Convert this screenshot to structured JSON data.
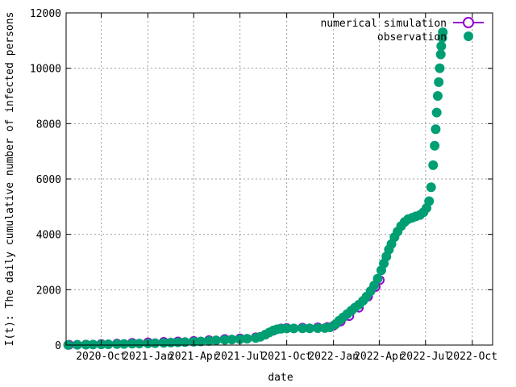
{
  "chart_data": {
    "type": "scatter",
    "xlabel": "date",
    "ylabel": "I(t): The daily cumulative number of infected persons",
    "xlim": [
      "2020-07-24",
      "2022-11-10"
    ],
    "ylim": [
      0,
      12000
    ],
    "x_ticks": [
      "2020-10-01",
      "2021-01-01",
      "2021-04-01",
      "2021-07-01",
      "2021-10-01",
      "2022-01-01",
      "2022-04-01",
      "2022-07-01",
      "2022-10-01"
    ],
    "x_tick_labels": [
      "2020-Oct",
      "2021-Jan",
      "2021-Apr",
      "2021-Jul",
      "2021-Oct",
      "2022-Jan",
      "2022-Apr",
      "2022-Jul",
      "2022-Oct"
    ],
    "y_ticks": [
      0,
      2000,
      4000,
      6000,
      8000,
      10000,
      12000
    ],
    "y_tick_labels": [
      "0",
      "2000",
      "4000",
      "6000",
      "8000",
      "10000",
      "12000"
    ],
    "grid": true,
    "legend_position": "top-right",
    "series": [
      {
        "name": "numerical simulation",
        "style": "line-open-circles",
        "color": "#9400d3",
        "points": [
          [
            "2020-07-30",
            10
          ],
          [
            "2020-09-01",
            20
          ],
          [
            "2020-10-01",
            40
          ],
          [
            "2020-11-01",
            55
          ],
          [
            "2020-12-01",
            80
          ],
          [
            "2021-01-01",
            100
          ],
          [
            "2021-02-01",
            115
          ],
          [
            "2021-03-01",
            130
          ],
          [
            "2021-04-01",
            150
          ],
          [
            "2021-05-01",
            180
          ],
          [
            "2021-06-01",
            220
          ],
          [
            "2021-07-01",
            240
          ],
          [
            "2021-08-01",
            280
          ],
          [
            "2021-08-20",
            380
          ],
          [
            "2021-09-05",
            520
          ],
          [
            "2021-09-20",
            600
          ],
          [
            "2021-10-01",
            620
          ],
          [
            "2021-11-01",
            630
          ],
          [
            "2021-12-01",
            640
          ],
          [
            "2021-12-20",
            650
          ],
          [
            "2022-01-01",
            700
          ],
          [
            "2022-01-15",
            850
          ],
          [
            "2022-02-01",
            1050
          ],
          [
            "2022-02-20",
            1350
          ],
          [
            "2022-03-10",
            1750
          ],
          [
            "2022-03-25",
            2100
          ],
          [
            "2022-04-02",
            2350
          ]
        ]
      },
      {
        "name": "observation",
        "style": "filled-circles",
        "color": "#009e73",
        "points": [
          [
            "2020-07-28",
            5
          ],
          [
            "2020-08-15",
            10
          ],
          [
            "2020-09-01",
            15
          ],
          [
            "2020-09-15",
            20
          ],
          [
            "2020-10-01",
            25
          ],
          [
            "2020-10-15",
            30
          ],
          [
            "2020-11-01",
            35
          ],
          [
            "2020-11-15",
            40
          ],
          [
            "2020-12-01",
            50
          ],
          [
            "2020-12-15",
            55
          ],
          [
            "2021-01-01",
            60
          ],
          [
            "2021-01-15",
            70
          ],
          [
            "2021-02-01",
            80
          ],
          [
            "2021-02-15",
            90
          ],
          [
            "2021-03-01",
            100
          ],
          [
            "2021-03-15",
            110
          ],
          [
            "2021-04-01",
            120
          ],
          [
            "2021-04-15",
            130
          ],
          [
            "2021-05-01",
            150
          ],
          [
            "2021-05-15",
            170
          ],
          [
            "2021-06-01",
            190
          ],
          [
            "2021-06-15",
            200
          ],
          [
            "2021-07-01",
            210
          ],
          [
            "2021-07-15",
            230
          ],
          [
            "2021-08-01",
            260
          ],
          [
            "2021-08-10",
            300
          ],
          [
            "2021-08-20",
            380
          ],
          [
            "2021-08-28",
            460
          ],
          [
            "2021-09-05",
            530
          ],
          [
            "2021-09-12",
            570
          ],
          [
            "2021-09-20",
            590
          ],
          [
            "2021-10-01",
            600
          ],
          [
            "2021-10-15",
            600
          ],
          [
            "2021-11-01",
            605
          ],
          [
            "2021-11-15",
            605
          ],
          [
            "2021-12-01",
            610
          ],
          [
            "2021-12-15",
            615
          ],
          [
            "2021-12-25",
            640
          ],
          [
            "2022-01-05",
            750
          ],
          [
            "2022-01-12",
            880
          ],
          [
            "2022-01-20",
            1000
          ],
          [
            "2022-01-28",
            1120
          ],
          [
            "2022-02-05",
            1240
          ],
          [
            "2022-02-12",
            1350
          ],
          [
            "2022-02-20",
            1460
          ],
          [
            "2022-02-28",
            1600
          ],
          [
            "2022-03-07",
            1750
          ],
          [
            "2022-03-15",
            1950
          ],
          [
            "2022-03-22",
            2150
          ],
          [
            "2022-03-29",
            2400
          ],
          [
            "2022-04-05",
            2700
          ],
          [
            "2022-04-10",
            2950
          ],
          [
            "2022-04-15",
            3200
          ],
          [
            "2022-04-20",
            3450
          ],
          [
            "2022-04-25",
            3650
          ],
          [
            "2022-05-01",
            3900
          ],
          [
            "2022-05-07",
            4100
          ],
          [
            "2022-05-14",
            4300
          ],
          [
            "2022-05-21",
            4450
          ],
          [
            "2022-05-28",
            4550
          ],
          [
            "2022-06-05",
            4600
          ],
          [
            "2022-06-12",
            4650
          ],
          [
            "2022-06-20",
            4700
          ],
          [
            "2022-06-27",
            4800
          ],
          [
            "2022-07-03",
            4950
          ],
          [
            "2022-07-08",
            5200
          ],
          [
            "2022-07-12",
            5700
          ],
          [
            "2022-07-16",
            6500
          ],
          [
            "2022-07-19",
            7200
          ],
          [
            "2022-07-21",
            7800
          ],
          [
            "2022-07-23",
            8400
          ],
          [
            "2022-07-25",
            9000
          ],
          [
            "2022-07-27",
            9500
          ],
          [
            "2022-07-29",
            10000
          ],
          [
            "2022-07-31",
            10500
          ],
          [
            "2022-08-01",
            10800
          ],
          [
            "2022-08-03",
            11100
          ],
          [
            "2022-08-04",
            11300
          ]
        ]
      }
    ]
  }
}
